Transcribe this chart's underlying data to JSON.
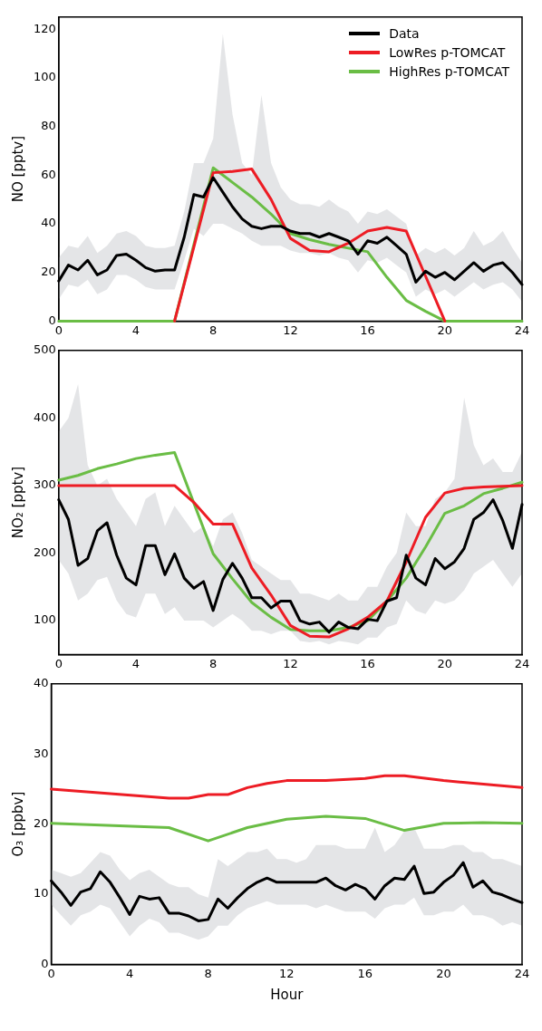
{
  "chart_data": [
    {
      "type": "line",
      "ylabel": "NO [pptv]",
      "xlim": [
        0,
        24
      ],
      "xticks": [
        0,
        4,
        8,
        12,
        16,
        20,
        24
      ],
      "ylim": [
        0,
        125
      ],
      "yticks": [
        0,
        20,
        40,
        60,
        80,
        100,
        120
      ],
      "grid": false,
      "legend": "top right",
      "x": [
        0,
        0.5,
        1,
        1.5,
        2,
        2.5,
        3,
        3.5,
        4,
        4.5,
        5,
        5.5,
        6,
        6.5,
        7,
        7.5,
        8,
        8.5,
        9,
        9.5,
        10,
        10.5,
        11,
        11.5,
        12,
        12.5,
        13,
        13.5,
        14,
        14.5,
        15,
        15.5,
        16,
        16.5,
        17,
        17.5,
        18,
        18.5,
        19,
        19.5,
        20,
        20.5,
        21,
        21.5,
        22,
        22.5,
        23,
        23.5,
        24
      ],
      "series": [
        {
          "name": "Data",
          "color": "#000000",
          "values": [
            16.5,
            23,
            21,
            25,
            19,
            21,
            27,
            27.5,
            25,
            22,
            20.5,
            21,
            21,
            34.5,
            52,
            51,
            59,
            53,
            47,
            42,
            39,
            38,
            39,
            39,
            37,
            36,
            36,
            34.5,
            36,
            34.5,
            33,
            27.5,
            33,
            32,
            34.5,
            31,
            27.5,
            16,
            20.5,
            18,
            20,
            17,
            20.5,
            24,
            20.5,
            23,
            24,
            20,
            15
          ],
          "upper": [
            26,
            31,
            30,
            35,
            28,
            31,
            36,
            37,
            35,
            31,
            30,
            30,
            31,
            45,
            65,
            65,
            75,
            118,
            85,
            65,
            60,
            93,
            65,
            55,
            50,
            48,
            48,
            47,
            50,
            47,
            45,
            40,
            45,
            44,
            46,
            43,
            40,
            27,
            30,
            28,
            30,
            27,
            30,
            37,
            31,
            33,
            37,
            30,
            24
          ],
          "lower": [
            9,
            15,
            14,
            17,
            11,
            13,
            19,
            19,
            17,
            14,
            13,
            13,
            13,
            25,
            38,
            35,
            40,
            40,
            38,
            36,
            33,
            31,
            31,
            31,
            29,
            28,
            28,
            27,
            28,
            26,
            25,
            20,
            25,
            24,
            26,
            23,
            20,
            10,
            13,
            11,
            13,
            10,
            13,
            16,
            13,
            15,
            16,
            13,
            8
          ]
        },
        {
          "name": "LowRes p-TOMCAT",
          "color": "#ed1c24",
          "x": [
            6,
            7,
            8,
            9,
            10,
            11,
            12,
            13,
            14,
            15,
            16,
            17,
            18,
            19,
            20
          ],
          "values": [
            0,
            30.5,
            61,
            61.5,
            62.5,
            50,
            34,
            29,
            28.5,
            32,
            37,
            38.5,
            37,
            18.5,
            0
          ]
        },
        {
          "name": "HighRes p-TOMCAT",
          "color": "#6abd45",
          "x": [
            0,
            1,
            2,
            3,
            4,
            5,
            6,
            7,
            8,
            9,
            10,
            11,
            12,
            13,
            14,
            15,
            16,
            17,
            18,
            19,
            20,
            21,
            22,
            23,
            24
          ],
          "values": [
            0,
            0,
            0,
            0,
            0,
            0,
            0,
            31.5,
            63,
            57,
            51,
            44,
            36,
            33.5,
            31.5,
            30,
            28.5,
            18,
            8.5,
            4,
            0,
            0,
            0,
            0,
            0
          ]
        }
      ]
    },
    {
      "type": "line",
      "ylabel": "NO₂ [pptv]",
      "xlim": [
        0,
        24
      ],
      "xticks": [
        0,
        4,
        8,
        12,
        16,
        20,
        24
      ],
      "ylim": [
        50,
        500
      ],
      "yticks": [
        100,
        200,
        300,
        400,
        500
      ],
      "grid": false,
      "x": [
        0,
        0.5,
        1,
        1.5,
        2,
        2.5,
        3,
        3.5,
        4,
        4.5,
        5,
        5.5,
        6,
        6.5,
        7,
        7.5,
        8,
        8.5,
        9,
        9.5,
        10,
        10.5,
        11,
        11.5,
        12,
        12.5,
        13,
        13.5,
        14,
        14.5,
        15,
        15.5,
        16,
        16.5,
        17,
        17.5,
        18,
        18.5,
        19,
        19.5,
        20,
        20.5,
        21,
        21.5,
        22,
        22.5,
        23,
        23.5,
        24
      ],
      "series": [
        {
          "color": "#000000",
          "values": [
            279,
            250,
            182,
            192,
            233,
            245,
            197,
            163,
            153,
            211,
            211,
            168,
            199,
            163,
            148,
            158,
            115,
            161,
            185,
            163,
            134,
            134,
            119,
            129,
            129,
            100,
            95,
            98,
            83,
            98,
            90,
            88,
            102,
            100,
            129,
            134,
            197,
            163,
            153,
            192,
            177,
            187,
            207,
            250,
            260,
            279,
            248,
            207,
            272
          ],
          "upper": [
            380,
            400,
            450,
            330,
            300,
            310,
            280,
            260,
            240,
            280,
            290,
            240,
            270,
            250,
            230,
            240,
            210,
            250,
            260,
            230,
            190,
            180,
            170,
            160,
            160,
            140,
            140,
            135,
            130,
            140,
            130,
            130,
            150,
            150,
            180,
            200,
            260,
            240,
            240,
            280,
            290,
            310,
            430,
            360,
            330,
            340,
            320,
            320,
            350
          ],
          "lower": [
            190,
            170,
            130,
            140,
            160,
            165,
            130,
            110,
            105,
            140,
            140,
            110,
            120,
            100,
            100,
            100,
            90,
            100,
            110,
            100,
            85,
            85,
            80,
            85,
            85,
            70,
            68,
            70,
            65,
            70,
            68,
            65,
            75,
            75,
            90,
            95,
            130,
            115,
            110,
            130,
            125,
            130,
            145,
            170,
            180,
            190,
            170,
            150,
            170
          ]
        },
        {
          "color": "#ed1c24",
          "x": [
            0,
            1,
            2,
            3,
            4,
            5,
            6,
            7,
            8,
            9,
            10,
            11,
            12,
            13,
            14,
            15,
            16,
            17,
            18,
            19,
            20,
            21,
            22,
            23,
            24
          ],
          "values": [
            300,
            300,
            300,
            300,
            300,
            300,
            300,
            275,
            243,
            243,
            178,
            138,
            93,
            77,
            76,
            88,
            105,
            129,
            187,
            253,
            289,
            296,
            298,
            299,
            300
          ]
        },
        {
          "color": "#6abd45",
          "x": [
            0,
            1,
            2,
            3,
            4,
            5,
            6,
            7,
            8,
            9,
            10,
            11,
            12,
            13,
            14,
            15,
            16,
            17,
            18,
            19,
            20,
            21,
            22,
            23,
            24
          ],
          "values": [
            308,
            315,
            325,
            332,
            340,
            345,
            349,
            274,
            199,
            162,
            127,
            105,
            87,
            85,
            85,
            90,
            100,
            129,
            163,
            209,
            259,
            270,
            288,
            296,
            305
          ]
        }
      ]
    },
    {
      "type": "line",
      "ylabel": "O₃ [ppbv]",
      "xlabel": "Hour",
      "xlim": [
        0,
        24
      ],
      "xticks": [
        0,
        4,
        8,
        12,
        16,
        20,
        24
      ],
      "ylim": [
        0,
        40
      ],
      "yticks": [
        0,
        10,
        20,
        30,
        40
      ],
      "grid": false,
      "x": [
        0,
        0.5,
        1,
        1.5,
        2,
        2.5,
        3,
        3.5,
        4,
        4.5,
        5,
        5.5,
        6,
        6.5,
        7,
        7.5,
        8,
        8.5,
        9,
        9.5,
        10,
        10.5,
        11,
        11.5,
        12,
        12.5,
        13,
        13.5,
        14,
        14.5,
        15,
        15.5,
        16,
        16.5,
        17,
        17.5,
        18,
        18.5,
        19,
        19.5,
        20,
        20.5,
        21,
        21.5,
        22,
        22.5,
        23,
        23.5,
        24
      ],
      "series": [
        {
          "color": "#000000",
          "values": [
            11.9,
            10.3,
            8.4,
            10.3,
            10.8,
            13.2,
            11.7,
            9.5,
            7.1,
            9.7,
            9.3,
            9.5,
            7.3,
            7.3,
            6.9,
            6.2,
            6.4,
            9.3,
            8,
            9.5,
            10.8,
            11.7,
            12.3,
            11.7,
            11.7,
            11.7,
            11.7,
            11.7,
            12.3,
            11.2,
            10.6,
            11.4,
            10.8,
            9.3,
            11.2,
            12.3,
            12.1,
            14,
            10.1,
            10.3,
            11.7,
            12.7,
            14.5,
            11,
            11.9,
            10.3,
            9.9,
            9.3,
            8.8
          ],
          "upper": [
            13.5,
            13,
            12.5,
            13,
            14.5,
            16,
            15.5,
            13.5,
            12,
            13,
            13.5,
            12.5,
            11.5,
            11,
            11,
            10,
            9.5,
            15,
            14,
            15,
            16,
            16,
            16.5,
            15,
            15,
            14.5,
            15,
            17,
            17,
            17,
            16.5,
            16.5,
            16.5,
            19.5,
            16,
            17,
            19,
            19.5,
            16.5,
            16.5,
            16.5,
            17,
            17,
            16,
            16,
            15,
            15,
            14.5,
            14
          ],
          "lower": [
            8.5,
            7,
            5.5,
            7,
            7.5,
            8.5,
            8,
            6,
            4,
            5.5,
            6.5,
            6,
            4.5,
            4.5,
            4,
            3.5,
            4,
            5.5,
            5.5,
            7,
            8,
            8.5,
            9,
            8.5,
            8.5,
            8.5,
            8.5,
            8,
            8.5,
            8,
            7.5,
            7.5,
            7.5,
            6.5,
            8,
            8.5,
            8.5,
            9.5,
            7,
            7,
            7.5,
            7.5,
            8.5,
            7,
            7,
            6.5,
            5.5,
            6,
            5.5
          ]
        },
        {
          "color": "#ed1c24",
          "x": [
            0,
            6,
            7,
            8,
            9,
            10,
            11,
            12,
            14,
            16,
            17,
            18,
            20,
            24
          ],
          "values": [
            25,
            23.7,
            23.7,
            24.2,
            24.2,
            25.2,
            25.8,
            26.2,
            26.2,
            26.5,
            26.9,
            26.9,
            26.2,
            25.2
          ]
        },
        {
          "color": "#6abd45",
          "x": [
            0,
            6,
            8,
            10,
            12,
            14,
            16,
            18,
            20,
            22,
            24
          ],
          "values": [
            20.1,
            19.5,
            17.6,
            19.5,
            20.7,
            21.1,
            20.8,
            19.1,
            20.1,
            20.2,
            20.1
          ]
        }
      ]
    }
  ]
}
